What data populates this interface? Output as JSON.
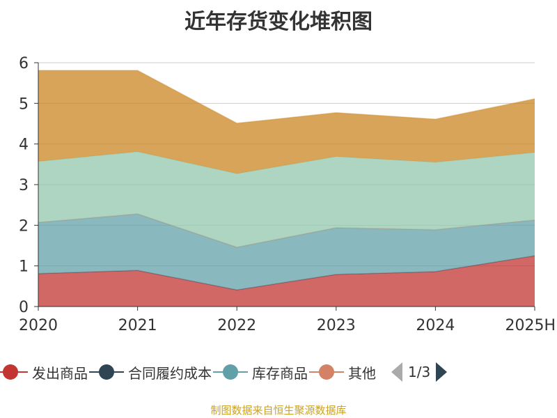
{
  "chart_data": {
    "type": "area",
    "stacked": true,
    "title": "近年存货变化堆积图",
    "categories": [
      "2020",
      "2021",
      "2022",
      "2023",
      "2024",
      "2025H"
    ],
    "ylim": [
      0,
      6
    ],
    "yticks": [
      "0",
      "1",
      "2",
      "3",
      "4",
      "5",
      "6"
    ],
    "grid": true,
    "legend_placement": "bottom",
    "series": [
      {
        "name": "发出商品",
        "color": "#c23531",
        "values": [
          0.81,
          0.89,
          0.41,
          0.79,
          0.86,
          1.25
        ]
      },
      {
        "name": "合同履约成本",
        "color": "#2f4554",
        "values": [
          0,
          0,
          0,
          0,
          0,
          0
        ]
      },
      {
        "name": "库存商品",
        "color": "#61a0a8",
        "values": [
          1.26,
          1.39,
          1.05,
          1.15,
          1.03,
          0.88
        ]
      },
      {
        "name": "其他",
        "color": "#d48265",
        "values": [
          0,
          0,
          0,
          0,
          0,
          0
        ]
      },
      {
        "color": "#91c7ae",
        "values": [
          1.5,
          1.53,
          1.81,
          1.75,
          1.66,
          1.66
        ]
      },
      {
        "color": "#ca8622",
        "values": [
          2.24,
          2.0,
          1.24,
          1.08,
          1.06,
          1.32
        ]
      }
    ]
  },
  "legend": {
    "page": "1/3",
    "items": [
      {
        "label": "发出商品",
        "color": "#c23531"
      },
      {
        "label": "合同履约成本",
        "color": "#2f4554"
      },
      {
        "label": "库存商品",
        "color": "#61a0a8"
      },
      {
        "label": "其他",
        "color": "#d48265"
      }
    ]
  },
  "source": "制图数据来自恒生聚源数据库"
}
